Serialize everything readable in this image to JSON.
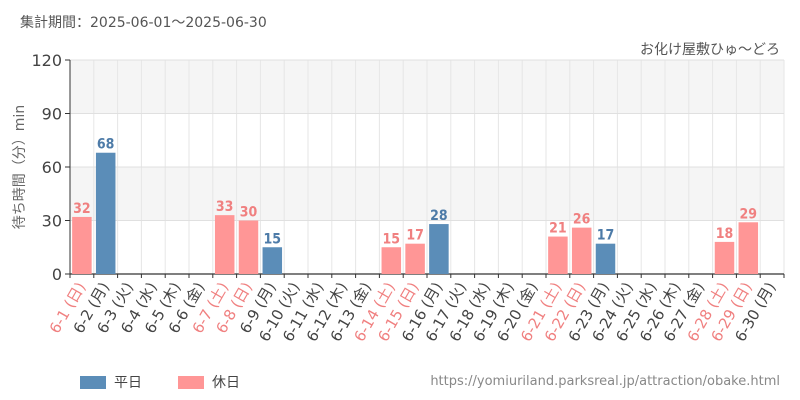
{
  "header": {
    "period": "集計期間：2025-06-01～2025-06-30"
  },
  "footer": {
    "source": "https://yomiuriland.parksreal.jp/attraction/obake.html"
  },
  "colors": {
    "weekday": "#5b8db8",
    "holiday": "#ff9696",
    "holiday_text": "#f08080",
    "weekday_text": "#4d7ba8"
  },
  "chart_data": {
    "type": "bar",
    "title": "お化け屋敷ひゅ～どろ",
    "ylabel": "待ち時間（分）min",
    "ylim": [
      0,
      120
    ],
    "yticks": [
      0,
      30,
      60,
      90,
      120
    ],
    "grid": true,
    "legend": {
      "position": "bottom-left",
      "items": [
        {
          "key": "weekday",
          "label": "平日"
        },
        {
          "key": "holiday",
          "label": "休日"
        }
      ]
    },
    "categories": [
      "6-1 (日)",
      "6-2 (月)",
      "6-3 (火)",
      "6-4 (水)",
      "6-5 (木)",
      "6-6 (金)",
      "6-7 (土)",
      "6-8 (日)",
      "6-9 (月)",
      "6-10 (火)",
      "6-11 (水)",
      "6-12 (木)",
      "6-13 (金)",
      "6-14 (土)",
      "6-15 (日)",
      "6-16 (月)",
      "6-17 (火)",
      "6-18 (水)",
      "6-19 (木)",
      "6-20 (金)",
      "6-21 (土)",
      "6-22 (日)",
      "6-23 (月)",
      "6-24 (火)",
      "6-25 (水)",
      "6-26 (木)",
      "6-27 (金)",
      "6-28 (土)",
      "6-29 (日)",
      "6-30 (月)"
    ],
    "values": [
      32,
      68,
      null,
      null,
      null,
      null,
      33,
      30,
      15,
      null,
      null,
      null,
      null,
      15,
      17,
      28,
      null,
      null,
      null,
      null,
      21,
      26,
      17,
      null,
      null,
      null,
      null,
      18,
      29,
      null
    ],
    "day_types": [
      "holiday",
      "weekday",
      "weekday",
      "weekday",
      "weekday",
      "weekday",
      "holiday",
      "holiday",
      "weekday",
      "weekday",
      "weekday",
      "weekday",
      "weekday",
      "holiday",
      "holiday",
      "weekday",
      "weekday",
      "weekday",
      "weekday",
      "weekday",
      "holiday",
      "holiday",
      "weekday",
      "weekday",
      "weekday",
      "weekday",
      "weekday",
      "holiday",
      "holiday",
      "weekday"
    ]
  }
}
